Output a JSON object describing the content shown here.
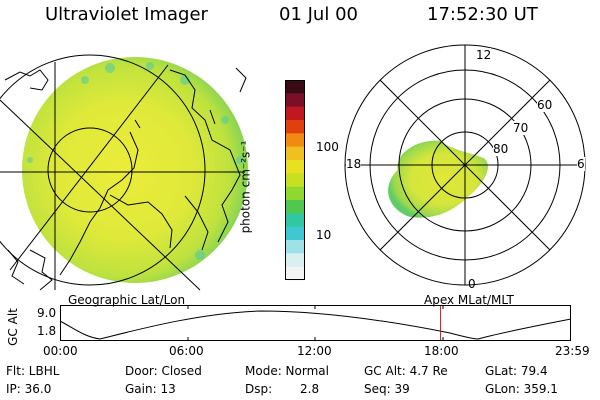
{
  "header": {
    "instrument": "Ultraviolet Imager",
    "date": "01 Jul 00",
    "time": "17:52:30 UT"
  },
  "colorbar": {
    "unit_label": "photon cm⁻²s⁻¹",
    "ticks": [
      "100",
      "10"
    ],
    "colors": [
      "#3a0a14",
      "#7a1028",
      "#c01820",
      "#e04010",
      "#f08a10",
      "#f0c020",
      "#e8e020",
      "#c8e020",
      "#90d830",
      "#50c850",
      "#30c8a0",
      "#40c8d0",
      "#a0e0e8",
      "#d8f0f0",
      "#f4f4f4"
    ]
  },
  "panels": {
    "left_label": "Geographic Lat/Lon",
    "right_label": "Apex  MLat/MLT",
    "polar": {
      "mlt_labels": [
        "12",
        "18",
        "6",
        "0"
      ],
      "lat_labels": [
        "60",
        "70",
        "80"
      ]
    }
  },
  "altitude_plot": {
    "ylabel": "GC Alt",
    "y_ticks": [
      "9.0",
      "1.8"
    ],
    "x_ticks": [
      "00:00",
      "06:00",
      "12:00",
      "18:00",
      "23:59"
    ],
    "current_time_hours": 17.875
  },
  "footer": {
    "filter": "Flt: LBHL",
    "ip": "IP: 36.0",
    "door": "Door: Closed",
    "gain": "Gain: 13",
    "mode": "Mode: Normal",
    "dsp_label": "Dsp:",
    "dsp_value": "2.8",
    "gc_alt": "GC Alt: 4.7 Re",
    "seq": "Seq: 39",
    "glat": "GLat: 79.4",
    "glon": "GLon: 359.1"
  }
}
